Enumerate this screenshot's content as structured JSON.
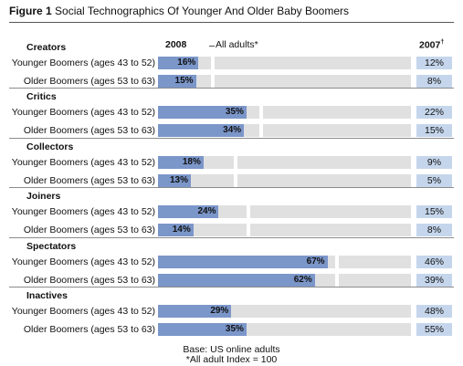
{
  "figure": {
    "label": "Figure 1",
    "title": "Social Technographics Of Younger And Older Baby Boomers"
  },
  "headers": {
    "col2008": "2008",
    "all_adults": "All adults*",
    "col2007": "2007",
    "col2007_mark": "†"
  },
  "footer": {
    "base": "Base: US online adults",
    "note": "*All adult Index = 100"
  },
  "chart_data": {
    "type": "bar",
    "orientation": "horizontal",
    "value_unit": "%",
    "groups": [
      {
        "name": "Creators",
        "all_adults": 21,
        "rows": [
          {
            "label": "Younger Boomers (ages 43 to 52)",
            "v2008": 16,
            "label2008": "16%",
            "v2007": "12%"
          },
          {
            "label": "Older Boomers (ages 53 to 63)",
            "v2008": 15,
            "label2008": "15%",
            "v2007": "8%"
          }
        ]
      },
      {
        "name": "Critics",
        "all_adults": 40,
        "rows": [
          {
            "label": "Younger Boomers (ages 43 to 52)",
            "v2008": 35,
            "label2008": "35%",
            "v2007": "22%"
          },
          {
            "label": "Older Boomers (ages 53 to 63)",
            "v2008": 34,
            "label2008": "34%",
            "v2007": "15%"
          }
        ]
      },
      {
        "name": "Collectors",
        "all_adults": 30,
        "rows": [
          {
            "label": "Younger Boomers (ages 43 to 52)",
            "v2008": 18,
            "label2008": "18%",
            "v2007": "9%"
          },
          {
            "label": "Older Boomers (ages 53 to 63)",
            "v2008": 13,
            "label2008": "13%",
            "v2007": "5%"
          }
        ]
      },
      {
        "name": "Joiners",
        "all_adults": 35,
        "rows": [
          {
            "label": "Younger Boomers (ages 43 to 52)",
            "v2008": 24,
            "label2008": "24%",
            "v2007": "15%"
          },
          {
            "label": "Older Boomers (ages 53 to 63)",
            "v2008": 14,
            "label2008": "14%",
            "v2007": "8%"
          }
        ]
      },
      {
        "name": "Spectators",
        "all_adults": 70,
        "rows": [
          {
            "label": "Younger Boomers (ages 43 to 52)",
            "v2008": 67,
            "label2008": "67%",
            "v2007": "46%"
          },
          {
            "label": "Older Boomers (ages 53 to 63)",
            "v2008": 62,
            "label2008": "62%",
            "v2007": "39%"
          }
        ]
      },
      {
        "name": "Inactives",
        "all_adults": 25,
        "rows": [
          {
            "label": "Younger Boomers (ages 43 to 52)",
            "v2008": 29,
            "label2008": "29%",
            "v2007": "48%"
          },
          {
            "label": "Older Boomers (ages 53 to 63)",
            "v2008": 35,
            "label2008": "35%",
            "v2007": "55%"
          }
        ]
      }
    ],
    "xlim": [
      0,
      100
    ],
    "colors": {
      "bar2008": "#7b96c9",
      "track": "#e0e0e0",
      "cell2007": "#c5d6ec"
    }
  }
}
